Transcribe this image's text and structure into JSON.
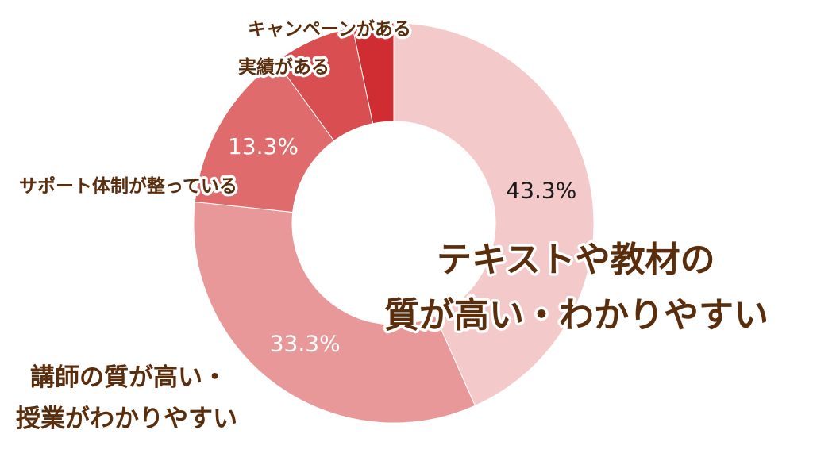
{
  "chart_data": {
    "type": "pie",
    "categories": [
      "テキストや教材の質が高い・わかりやすい",
      "講師の質が高い・授業がわかりやすい",
      "サポート体制が整っている",
      "実績がある",
      "キャンペーンがある"
    ],
    "values": [
      43.3,
      33.3,
      13.3,
      6.7,
      3.3
    ],
    "value_labels": [
      "43.3%",
      "33.3%",
      "13.3%",
      "",
      ""
    ],
    "colors": [
      "#f4c9ca",
      "#e89898",
      "#e06b6c",
      "#d84e51",
      "#cf2d31"
    ],
    "value_label_colors": [
      "#1a1a1a",
      "#ffffff",
      "#ffffff",
      "",
      ""
    ],
    "donut": true,
    "start_angle": "12 o'clock, clockwise",
    "title": ""
  },
  "labels": {
    "texts": {
      "line1": "テキストや教材の",
      "line2": "質が高い・わかりやすい"
    },
    "instructors": {
      "line1": "講師の質が高い・",
      "line2": "授業がわかりやすい"
    },
    "support": "サポート体制が整っている",
    "record": "実績がある",
    "campaign": "キャンペーンがある"
  }
}
